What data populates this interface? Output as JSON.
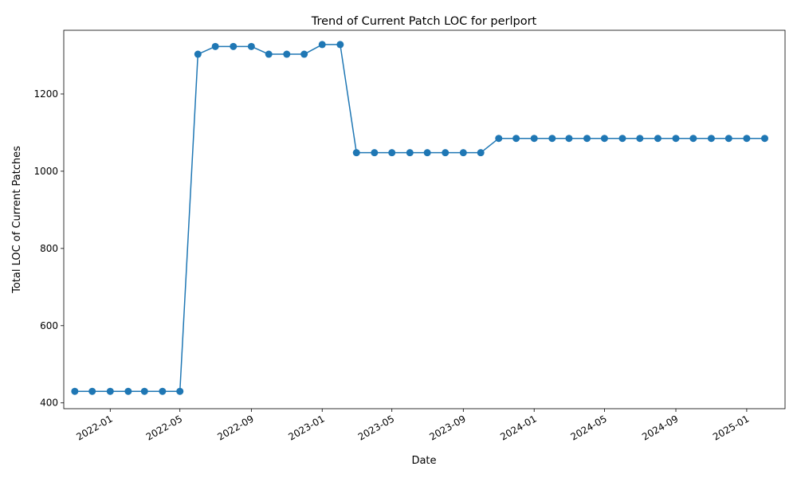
{
  "chart_data": {
    "type": "line",
    "title": "Trend of Current Patch LOC for perlport",
    "xlabel": "Date",
    "ylabel": "Total LOC of Current Patches",
    "x_type": "date",
    "xlim": [
      "2021-10-13",
      "2025-03-08"
    ],
    "ylim": [
      385,
      1365
    ],
    "x_ticks": [
      {
        "date": "2022-01-01",
        "label": "2022-01"
      },
      {
        "date": "2022-05-01",
        "label": "2022-05"
      },
      {
        "date": "2022-09-01",
        "label": "2022-09"
      },
      {
        "date": "2023-01-01",
        "label": "2023-01"
      },
      {
        "date": "2023-05-01",
        "label": "2023-05"
      },
      {
        "date": "2023-09-01",
        "label": "2023-09"
      },
      {
        "date": "2024-01-01",
        "label": "2024-01"
      },
      {
        "date": "2024-05-01",
        "label": "2024-05"
      },
      {
        "date": "2024-09-01",
        "label": "2024-09"
      },
      {
        "date": "2025-01-01",
        "label": "2025-01"
      }
    ],
    "y_ticks": [
      400,
      600,
      800,
      1000,
      1200
    ],
    "grid": false,
    "legend": "none",
    "series": [
      {
        "color": "#1f77b4",
        "marker": "circle",
        "points": [
          {
            "x": "2021-11-01",
            "y": 430
          },
          {
            "x": "2021-12-01",
            "y": 430
          },
          {
            "x": "2022-01-01",
            "y": 430
          },
          {
            "x": "2022-02-01",
            "y": 430
          },
          {
            "x": "2022-03-01",
            "y": 430
          },
          {
            "x": "2022-04-01",
            "y": 430
          },
          {
            "x": "2022-05-01",
            "y": 430
          },
          {
            "x": "2022-06-01",
            "y": 1303
          },
          {
            "x": "2022-07-01",
            "y": 1323
          },
          {
            "x": "2022-08-01",
            "y": 1323
          },
          {
            "x": "2022-09-01",
            "y": 1323
          },
          {
            "x": "2022-10-01",
            "y": 1303
          },
          {
            "x": "2022-11-01",
            "y": 1303
          },
          {
            "x": "2022-12-01",
            "y": 1303
          },
          {
            "x": "2023-01-01",
            "y": 1328
          },
          {
            "x": "2023-02-01",
            "y": 1328
          },
          {
            "x": "2023-03-01",
            "y": 1048
          },
          {
            "x": "2023-04-01",
            "y": 1048
          },
          {
            "x": "2023-05-01",
            "y": 1048
          },
          {
            "x": "2023-06-01",
            "y": 1048
          },
          {
            "x": "2023-07-01",
            "y": 1048
          },
          {
            "x": "2023-08-01",
            "y": 1048
          },
          {
            "x": "2023-09-01",
            "y": 1048
          },
          {
            "x": "2023-10-01",
            "y": 1048
          },
          {
            "x": "2023-11-01",
            "y": 1085
          },
          {
            "x": "2023-12-01",
            "y": 1085
          },
          {
            "x": "2024-01-01",
            "y": 1085
          },
          {
            "x": "2024-02-01",
            "y": 1085
          },
          {
            "x": "2024-03-01",
            "y": 1085
          },
          {
            "x": "2024-04-01",
            "y": 1085
          },
          {
            "x": "2024-05-01",
            "y": 1085
          },
          {
            "x": "2024-06-01",
            "y": 1085
          },
          {
            "x": "2024-07-01",
            "y": 1085
          },
          {
            "x": "2024-08-01",
            "y": 1085
          },
          {
            "x": "2024-09-01",
            "y": 1085
          },
          {
            "x": "2024-10-01",
            "y": 1085
          },
          {
            "x": "2024-11-01",
            "y": 1085
          },
          {
            "x": "2024-12-01",
            "y": 1085
          },
          {
            "x": "2025-01-01",
            "y": 1085
          },
          {
            "x": "2025-02-01",
            "y": 1085
          }
        ]
      }
    ]
  }
}
